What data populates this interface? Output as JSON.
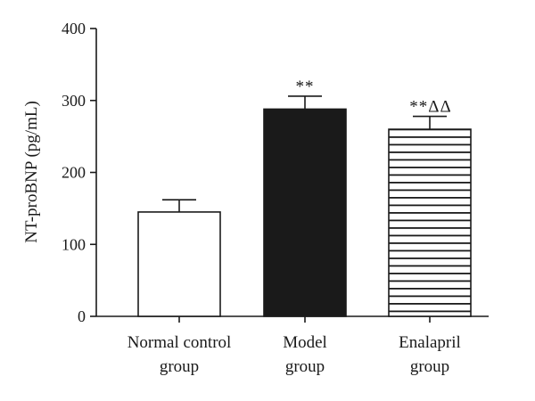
{
  "chart_data": {
    "type": "bar",
    "title": "",
    "ylabel": "NT-proBNP (pg/mL)",
    "xlabel": "",
    "ylim": [
      0,
      400
    ],
    "yticks": [
      0,
      100,
      200,
      300,
      400
    ],
    "categories": [
      [
        "Normal control",
        "group"
      ],
      [
        "Model",
        "group"
      ],
      [
        "Enalapril",
        "group"
      ]
    ],
    "values": [
      145,
      288,
      260
    ],
    "errors": [
      17,
      18,
      18
    ],
    "annotations": [
      "",
      "**",
      "**ΔΔ"
    ],
    "fills": [
      "white",
      "black",
      "horizontal-stripes"
    ],
    "colors": {
      "bar_dark": "#1a1a1a",
      "outline": "#1a1a1a",
      "background": "#ffffff"
    }
  }
}
